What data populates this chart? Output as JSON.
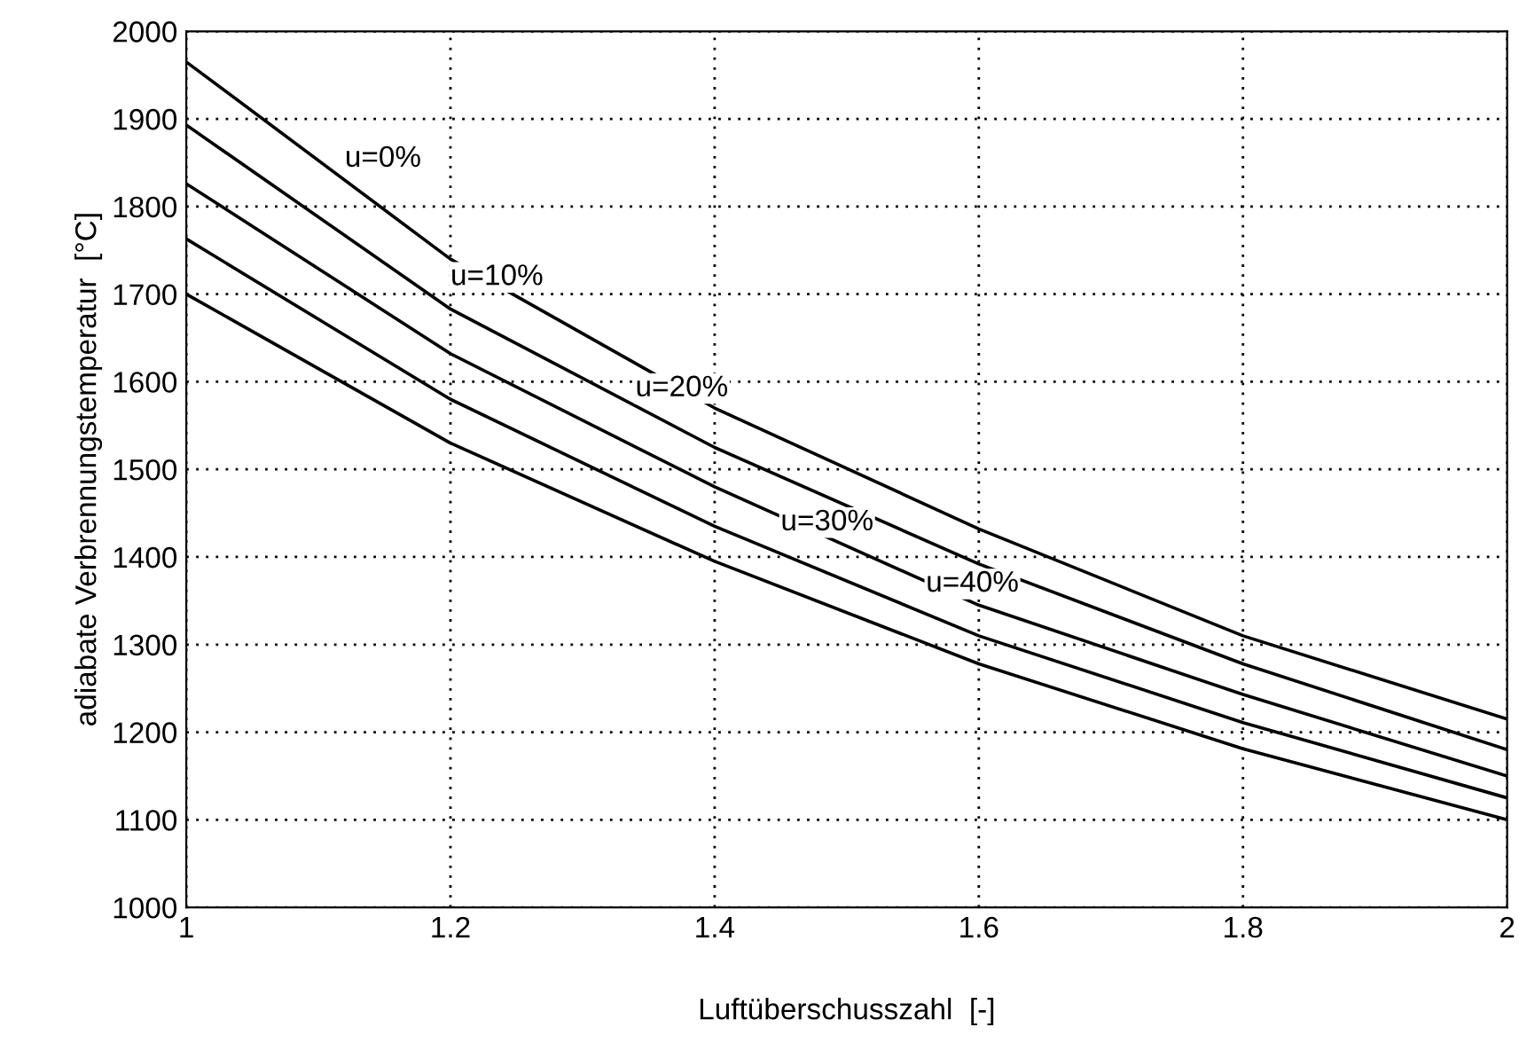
{
  "chart_data": {
    "type": "line",
    "xlabel": "Luftüberschusszahl  [-]",
    "ylabel": "adiabate Verbrennungstemperatur  [°C]",
    "x": [
      1,
      1.2,
      1.4,
      1.6,
      1.8,
      2
    ],
    "series": [
      {
        "color": "#000000",
        "values": [
          1965,
          1740,
          1570,
          1432,
          1310,
          1215
        ]
      },
      {
        "color": "#000000",
        "values": [
          1893,
          1683,
          1525,
          1392,
          1278,
          1180
        ]
      },
      {
        "color": "#000000",
        "values": [
          1826,
          1632,
          1480,
          1345,
          1243,
          1150
        ]
      },
      {
        "color": "#000000",
        "values": [
          1763,
          1580,
          1435,
          1310,
          1211,
          1125
        ]
      },
      {
        "color": "#000000",
        "values": [
          1700,
          1530,
          1395,
          1278,
          1181,
          1100
        ]
      }
    ],
    "annotations": [
      {
        "text": "u=0%",
        "x": 1.12,
        "y": 1830
      },
      {
        "text": "u=10%",
        "x": 1.2,
        "y": 1695
      },
      {
        "text": "u=20%",
        "x": 1.34,
        "y": 1568
      },
      {
        "text": "u=30%",
        "x": 1.45,
        "y": 1415
      },
      {
        "text": "u=40%",
        "x": 1.56,
        "y": 1345
      }
    ],
    "xlim": [
      1,
      2
    ],
    "ylim": [
      1000,
      2000
    ],
    "xticks": [
      1,
      1.2,
      1.4,
      1.6,
      1.8,
      2
    ],
    "yticks": [
      1000,
      1100,
      1200,
      1300,
      1400,
      1500,
      1600,
      1700,
      1800,
      1900,
      2000
    ],
    "grid": true,
    "line_style": "solid",
    "marker": "none",
    "legend": false
  }
}
